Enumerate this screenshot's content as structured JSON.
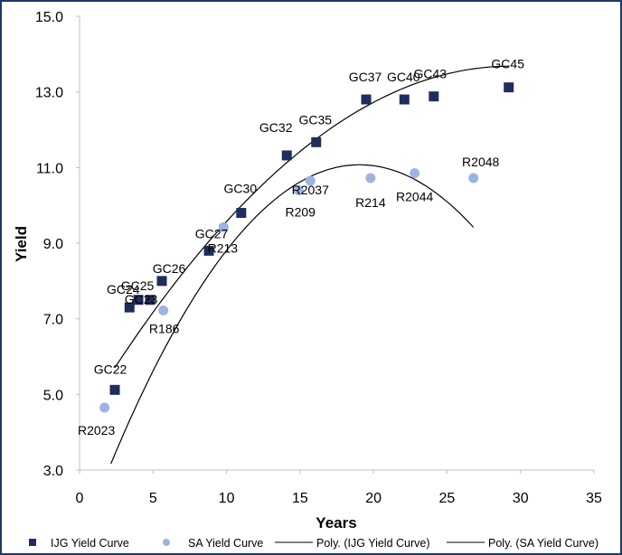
{
  "chart_data": {
    "type": "scatter",
    "xlabel": "Years",
    "ylabel": "Yield",
    "xlim": [
      0,
      35
    ],
    "ylim": [
      3.0,
      15.0
    ],
    "x_ticks": [
      0,
      5,
      10,
      15,
      20,
      25,
      30,
      35
    ],
    "y_ticks": [
      3.0,
      5.0,
      7.0,
      9.0,
      11.0,
      13.0,
      15.0
    ],
    "grid": false,
    "legend_position": "bottom",
    "series": [
      {
        "name": "IJG Yield Curve",
        "marker": "square",
        "color": "#1f2d5c",
        "points": [
          {
            "label": "GC22",
            "x": 2.4,
            "y": 5.12
          },
          {
            "label": "GC24",
            "x": 3.4,
            "y": 7.3
          },
          {
            "label": "GC25",
            "x": 4.0,
            "y": 7.5
          },
          {
            "label": "GC23",
            "x": 4.8,
            "y": 7.5
          },
          {
            "label": "GC26",
            "x": 5.6,
            "y": 8.0
          },
          {
            "label": "GC27",
            "x": 8.8,
            "y": 8.8
          },
          {
            "label": "GC30",
            "x": 11.0,
            "y": 9.8
          },
          {
            "label": "GC32",
            "x": 14.1,
            "y": 11.32
          },
          {
            "label": "GC35",
            "x": 16.1,
            "y": 11.67
          },
          {
            "label": "GC37",
            "x": 19.5,
            "y": 12.8
          },
          {
            "label": "GC40",
            "x": 22.1,
            "y": 12.8
          },
          {
            "label": "GC43",
            "x": 24.1,
            "y": 12.88
          },
          {
            "label": "GC45",
            "x": 29.2,
            "y": 13.12
          }
        ]
      },
      {
        "name": "SA Yield Curve",
        "marker": "circle",
        "color": "#9db3e0",
        "points": [
          {
            "label": "R2023",
            "x": 1.7,
            "y": 4.65
          },
          {
            "label": "R186",
            "x": 5.7,
            "y": 7.22
          },
          {
            "label": "R213",
            "x": 9.8,
            "y": 9.42
          },
          {
            "label": "R209",
            "x": 14.9,
            "y": 10.4
          },
          {
            "label": "R2037",
            "x": 15.7,
            "y": 10.65
          },
          {
            "label": "R214",
            "x": 19.8,
            "y": 10.72
          },
          {
            "label": "R2044",
            "x": 22.8,
            "y": 10.85
          },
          {
            "label": "R2048",
            "x": 26.8,
            "y": 10.72
          }
        ]
      }
    ],
    "trendlines": [
      {
        "name": "Poly. (IJG Yield Curve)",
        "x_range": [
          2.4,
          29.2
        ],
        "coef": [
          4.22,
          0.6452,
          -0.011
        ]
      },
      {
        "name": "Poly. (SA Yield Curve)",
        "x_range": [
          1.5,
          26.8
        ],
        "coef": [
          1.05,
          1.0519,
          -0.0276
        ]
      }
    ],
    "legend": [
      {
        "key": "ijg",
        "label": "IJG Yield Curve"
      },
      {
        "key": "sa",
        "label": "SA Yield Curve"
      },
      {
        "key": "poly_ijg",
        "label": "Poly. (IJG Yield Curve)"
      },
      {
        "key": "poly_sa",
        "label": "Poly. (SA Yield Curve)"
      }
    ]
  }
}
